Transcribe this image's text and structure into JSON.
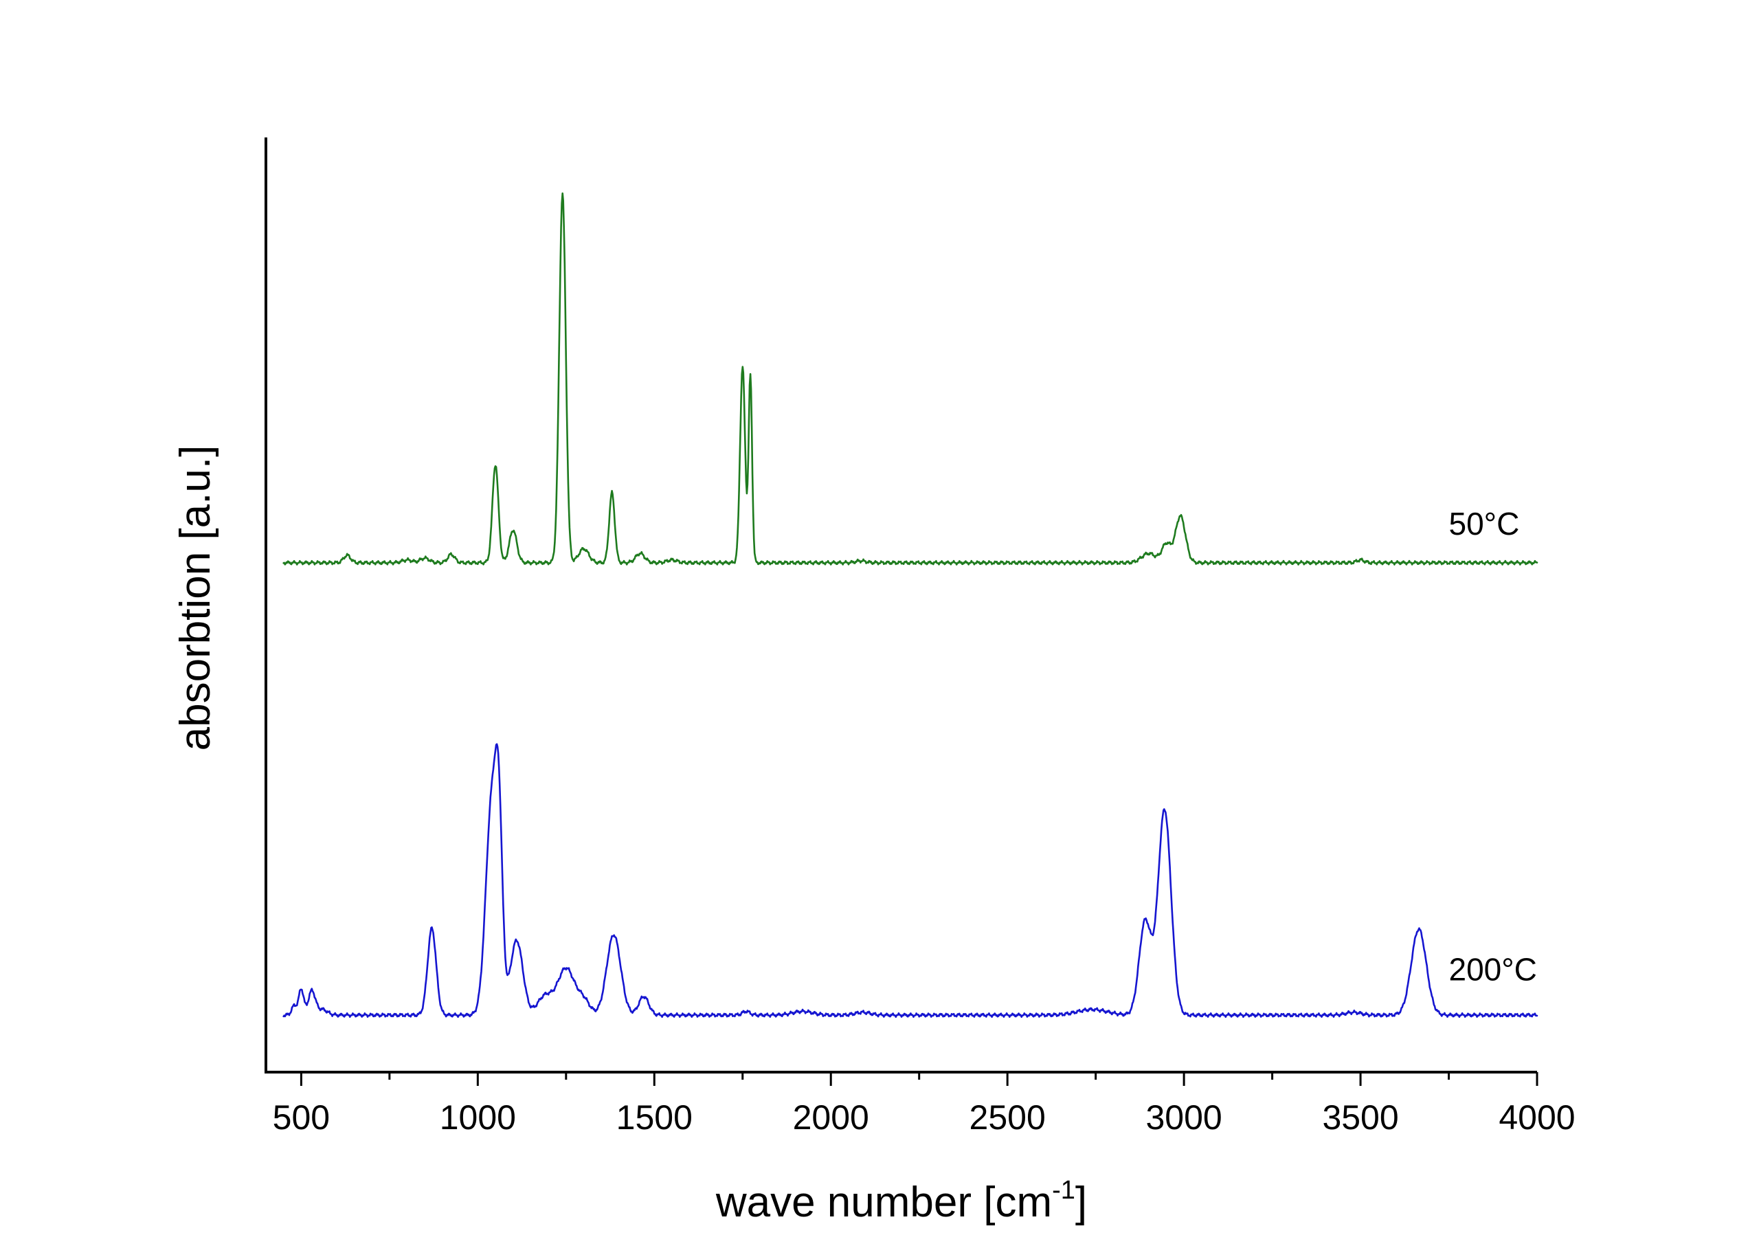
{
  "chart_data": {
    "type": "line",
    "title": "",
    "xlabel": "wave number [cm",
    "xlabel_sup": "-1",
    "xlabel_end": "]",
    "ylabel": "absorbtion [a.u.]",
    "xlim": [
      400,
      4000
    ],
    "ylim": [
      0,
      100
    ],
    "x_ticks": [
      500,
      1000,
      1500,
      2000,
      2500,
      3000,
      3500,
      4000
    ],
    "x_tick_labels": [
      "500",
      "1000",
      "1500",
      "2000",
      "2500",
      "3000",
      "3500",
      "4000"
    ],
    "x_minor_step": 250,
    "y_ticks_shown": false,
    "grid": false,
    "legend": "none",
    "series": [
      {
        "name": "50°C",
        "color": "#1e7b1e",
        "label_at": [
          3750,
          57.5
        ],
        "baseline": 54.5,
        "peaks": [
          [
            630,
            0.8,
            14
          ],
          [
            800,
            0.3,
            20
          ],
          [
            850,
            0.5,
            18
          ],
          [
            925,
            0.9,
            14
          ],
          [
            1050,
            10.5,
            12
          ],
          [
            1100,
            3.5,
            15
          ],
          [
            1240,
            39.5,
            13
          ],
          [
            1300,
            1.5,
            20
          ],
          [
            1380,
            7.5,
            11
          ],
          [
            1460,
            1.0,
            18
          ],
          [
            1550,
            0.3,
            20
          ],
          [
            1750,
            21.0,
            10
          ],
          [
            1772,
            20.0,
            7
          ],
          [
            2085,
            0.2,
            20
          ],
          [
            2900,
            1.0,
            28
          ],
          [
            2950,
            2.0,
            18
          ],
          [
            2990,
            5.0,
            20
          ],
          [
            3500,
            0.3,
            15
          ]
        ]
      },
      {
        "name": "200°C",
        "color": "#1515d0",
        "label_at": [
          3750,
          9.8
        ],
        "baseline": 6.1,
        "peaks": [
          [
            480,
            1.0,
            10
          ],
          [
            500,
            2.8,
            10
          ],
          [
            530,
            2.6,
            14
          ],
          [
            560,
            0.6,
            20
          ],
          [
            870,
            9.3,
            17
          ],
          [
            1040,
            23.0,
            24
          ],
          [
            1060,
            15.0,
            14
          ],
          [
            1110,
            8.0,
            25
          ],
          [
            1190,
            2.0,
            30
          ],
          [
            1250,
            5.0,
            34
          ],
          [
            1300,
            1.5,
            25
          ],
          [
            1385,
            8.6,
            28
          ],
          [
            1470,
            2.0,
            20
          ],
          [
            1760,
            0.4,
            15
          ],
          [
            1920,
            0.4,
            40
          ],
          [
            2090,
            0.3,
            30
          ],
          [
            2740,
            0.6,
            60
          ],
          [
            2890,
            10.0,
            24
          ],
          [
            2945,
            22.0,
            26
          ],
          [
            3480,
            0.3,
            30
          ],
          [
            3665,
            9.2,
            30
          ]
        ]
      }
    ]
  }
}
